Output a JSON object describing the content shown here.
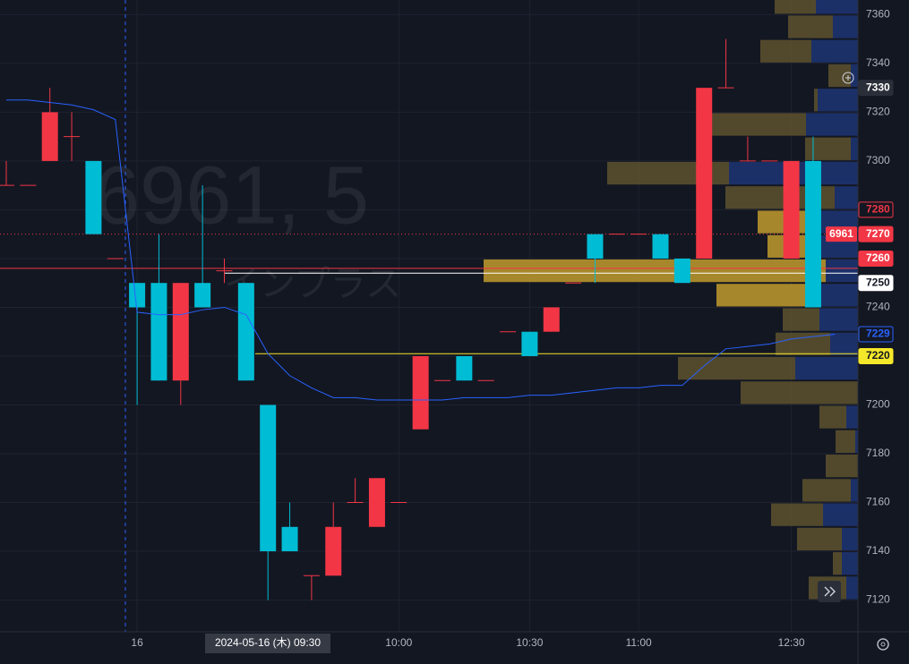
{
  "chart_data": {
    "type": "candlestick",
    "watermark": "6961, 5",
    "watermark_sub": "インプラス",
    "crosshair_label": "2024-05-16 (木)  09:30",
    "symbol": "6961",
    "categories": [
      null,
      null,
      null,
      null,
      null,
      null,
      "16",
      null,
      null,
      null,
      null,
      null,
      null,
      null,
      null,
      null,
      null,
      null,
      "10:00",
      null,
      null,
      null,
      null,
      null,
      "10:30",
      null,
      null,
      null,
      null,
      "11:00",
      null,
      null,
      null,
      null,
      null,
      null,
      "12:30",
      null,
      null
    ],
    "open": [
      7290,
      7290,
      7300,
      7310,
      7300,
      7260,
      7250,
      7250,
      7210,
      7250,
      7255,
      7250,
      7200,
      7150,
      7130,
      7130,
      7160,
      7150,
      7160,
      7190,
      7210,
      7220,
      7210,
      7230,
      7230,
      7230,
      7250,
      7270,
      7270,
      7270,
      7270,
      7260,
      7260,
      7330,
      7300,
      7300,
      7260,
      7300,
      null
    ],
    "high": [
      7300,
      7290,
      7330,
      7320,
      7300,
      7260,
      7250,
      7270,
      7250,
      7290,
      7260,
      7250,
      7200,
      7160,
      7130,
      7160,
      7170,
      7170,
      7160,
      7220,
      7210,
      7220,
      7210,
      7230,
      7230,
      7240,
      7250,
      7270,
      7270,
      7270,
      7270,
      7260,
      7330,
      7350,
      7310,
      7300,
      7300,
      7310,
      null
    ],
    "low": [
      7290,
      7290,
      7300,
      7300,
      7270,
      7260,
      7200,
      7210,
      7200,
      7240,
      7250,
      7210,
      7120,
      7140,
      7120,
      7130,
      7160,
      7150,
      7160,
      7190,
      7210,
      7210,
      7210,
      7230,
      7220,
      7230,
      7250,
      7250,
      7270,
      7270,
      7260,
      7250,
      7260,
      7330,
      7300,
      7300,
      7260,
      7240,
      null
    ],
    "close": [
      7290,
      7290,
      7320,
      7310,
      7270,
      7260,
      7240,
      7210,
      7250,
      7240,
      7255,
      7210,
      7140,
      7140,
      7130,
      7150,
      7160,
      7170,
      7160,
      7220,
      7210,
      7210,
      7210,
      7230,
      7220,
      7240,
      7250,
      7260,
      7270,
      7270,
      7260,
      7250,
      7330,
      7330,
      7300,
      7300,
      7300,
      7240,
      null
    ],
    "up_color": "#f23645",
    "down_color": "#00bcd4",
    "line": {
      "color": "#2962ff",
      "values": [
        7325,
        7325,
        7324,
        7323,
        7321,
        7317,
        7238,
        7237,
        7237,
        7239,
        7240,
        7237,
        7221,
        7212,
        7207,
        7203,
        7203,
        7202,
        7202,
        7202,
        7202,
        7203,
        7203,
        7203,
        7204,
        7204,
        7205,
        7206,
        7207,
        7207,
        7208,
        7208,
        7216,
        7223,
        7224,
        7225,
        7227,
        7228,
        7229
      ]
    },
    "ylim": [
      7107,
      7366
    ],
    "yticks": [
      7120,
      7140,
      7160,
      7180,
      7200,
      7220,
      7240,
      7260,
      7280,
      7300,
      7320,
      7340,
      7360
    ],
    "volume_profile": {
      "bins": [
        7120,
        7130,
        7140,
        7150,
        7160,
        7170,
        7180,
        7190,
        7200,
        7210,
        7220,
        7230,
        7240,
        7250,
        7260,
        7270,
        7280,
        7290,
        7300,
        7310,
        7320,
        7330,
        7340,
        7350,
        7360,
        7370
      ],
      "buy": [
        13,
        18,
        18,
        39,
        8,
        0,
        3,
        13,
        0,
        70,
        31,
        43,
        48,
        36,
        48,
        42,
        26,
        144,
        8,
        58,
        45,
        8,
        52,
        28,
        47
      ],
      "sell": [
        42,
        10,
        50,
        58,
        54,
        36,
        22,
        30,
        131,
        131,
        61,
        41,
        110,
        382,
        53,
        70,
        122,
        136,
        51,
        114,
        4,
        25,
        57,
        50,
        46
      ],
      "buy_color": "#1e3370",
      "sell_color": "#5a4f2e",
      "value_area_color": "#b8932c",
      "value_area": [
        7240,
        7280
      ]
    },
    "lines": [
      {
        "value": 7270,
        "color": "#f23645"
      },
      {
        "value": 7256,
        "color": "#f23645"
      },
      {
        "value": 7254,
        "color": "#ffffff"
      },
      {
        "value": 7221,
        "color": "#f5e72a"
      }
    ],
    "badges": [
      {
        "value": 7330,
        "bg": "#2a2e39",
        "fg": "#ffffff",
        "border": "#2a2e39"
      },
      {
        "value": 7280,
        "bg": "#131722",
        "fg": "#f23645",
        "border": "#f23645"
      },
      {
        "value": 7270,
        "bg": "#f23645",
        "fg": "#ffffff",
        "border": "#f23645"
      },
      {
        "value": 7260,
        "bg": "#f23645",
        "fg": "#ffffff",
        "border": "#f23645"
      },
      {
        "value": 7250,
        "bg": "#ffffff",
        "fg": "#131722",
        "border": "#ffffff"
      },
      {
        "value": 7229,
        "bg": "#131722",
        "fg": "#2962ff",
        "border": "#2962ff"
      },
      {
        "value": 7220,
        "bg": "#f5e72a",
        "fg": "#131722",
        "border": "#f5e72a"
      }
    ]
  }
}
